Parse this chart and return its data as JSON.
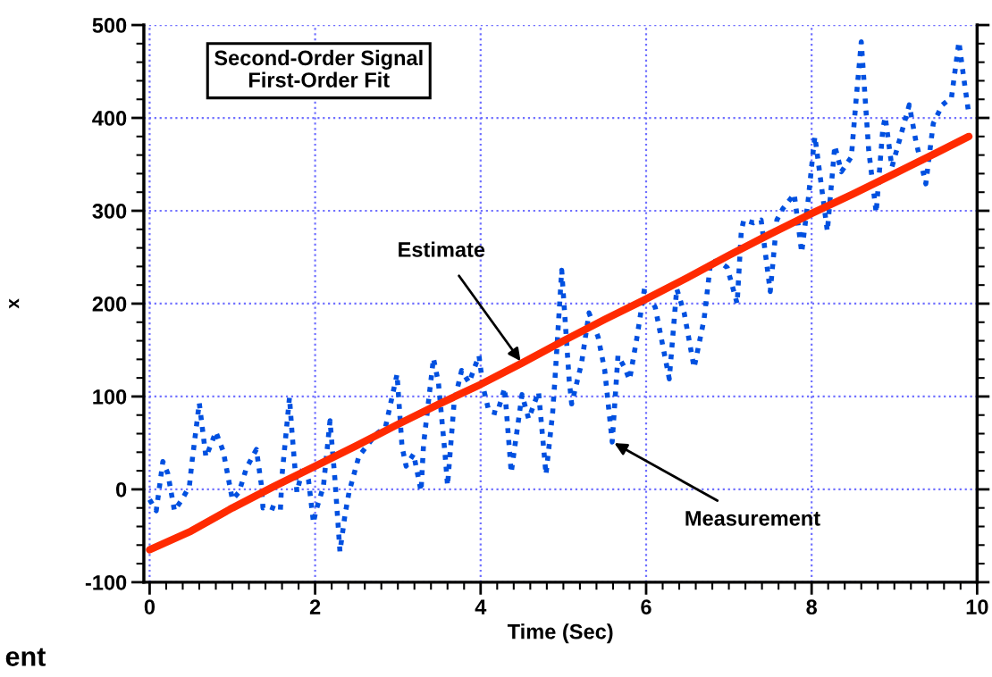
{
  "chart_data": {
    "type": "line",
    "xlabel": "Time (Sec)",
    "ylabel": "x",
    "title": "Second-Order Signal\nFirst-Order Fit",
    "annotations": [
      {
        "text": "Estimate",
        "x": 4.5,
        "y": 136
      },
      {
        "text": "Measurement",
        "x": 5.59,
        "y": 51
      },
      "ent"
    ],
    "xlim": [
      -0.07,
      10
    ],
    "xticks": [
      0,
      2,
      4,
      6,
      8,
      10
    ],
    "ylim": [
      -100,
      500
    ],
    "yticks": [
      -100,
      0,
      100,
      200,
      300,
      400,
      500
    ],
    "grid": true,
    "legend": false,
    "series": [
      {
        "color": "#0050e0",
        "line_style": "dotted",
        "x": [
          0,
          0.08,
          0.16,
          0.22,
          0.3,
          0.39,
          0.48,
          0.51,
          0.6,
          0.68,
          0.74,
          0.8,
          0.89,
          0.97,
          1.0,
          1.08,
          1.17,
          1.29,
          1.35,
          1.37,
          1.43,
          1.58,
          1.6,
          1.69,
          1.72,
          1.78,
          1.86,
          1.92,
          1.98,
          2.01,
          2.1,
          2.18,
          2.24,
          2.3,
          2.36,
          2.41,
          2.53,
          2.62,
          2.73,
          2.85,
          2.99,
          3.05,
          3.1,
          3.19,
          3.28,
          3.31,
          3.43,
          3.49,
          3.57,
          3.6,
          3.68,
          3.77,
          3.86,
          3.98,
          4.03,
          4.1,
          4.2,
          4.29,
          4.37,
          4.5,
          4.58,
          4.7,
          4.79,
          4.87,
          4.9,
          4.98,
          5.07,
          5.1,
          5.22,
          5.31,
          5.42,
          5.5,
          5.59,
          5.66,
          5.74,
          5.8,
          5.89,
          5.98,
          6.11,
          6.28,
          6.37,
          6.46,
          6.58,
          6.7,
          6.78,
          6.87,
          6.98,
          7.1,
          7.15,
          7.18,
          7.3,
          7.39,
          7.5,
          7.58,
          7.65,
          7.79,
          7.88,
          7.96,
          8.02,
          8.04,
          8.19,
          8.28,
          8.36,
          8.48,
          8.54,
          8.6,
          8.69,
          8.78,
          8.86,
          8.89,
          8.97,
          9.09,
          9.18,
          9.26,
          9.38,
          9.47,
          9.58,
          9.69,
          9.78,
          9.84,
          9.9
        ],
        "values": [
          -11,
          -23,
          30,
          17,
          -23,
          -11,
          3,
          28,
          93,
          35,
          48,
          62,
          41,
          3,
          -11,
          -3,
          23,
          43,
          5,
          -20,
          -18,
          -23,
          15,
          99,
          62,
          -3,
          26,
          10,
          -36,
          -23,
          3,
          74,
          10,
          -67,
          -28,
          -3,
          36,
          46,
          59,
          67,
          124,
          46,
          25,
          38,
          -2,
          48,
          141,
          115,
          38,
          4,
          94,
          128,
          115,
          144,
          110,
          84,
          82,
          109,
          18,
          102,
          76,
          105,
          16,
          82,
          121,
          236,
          118,
          92,
          136,
          190,
          164,
          128,
          51,
          144,
          131,
          118,
          164,
          216,
          196,
          119,
          216,
          190,
          131,
          183,
          245,
          246,
          239,
          200,
          278,
          290,
          287,
          290,
          213,
          290,
          302,
          318,
          255,
          313,
          365,
          380,
          278,
          370,
          342,
          358,
          422,
          482,
          365,
          298,
          388,
          401,
          347,
          385,
          414,
          375,
          329,
          394,
          414,
          422,
          482,
          442,
          404
        ]
      },
      {
        "color": "#ff2a00",
        "line_style": "solid",
        "x": [
          0,
          0.5,
          1,
          1.5,
          2,
          2.5,
          3,
          3.5,
          4,
          4.5,
          5,
          5.5,
          6,
          6.5,
          7,
          7.5,
          8,
          8.5,
          9,
          9.5,
          9.9
        ],
        "values": [
          -65,
          -45,
          -20,
          3,
          25,
          47,
          70,
          92,
          113,
          136,
          160,
          183,
          205,
          228,
          252,
          275,
          297,
          318,
          340,
          362,
          380
        ]
      }
    ]
  }
}
